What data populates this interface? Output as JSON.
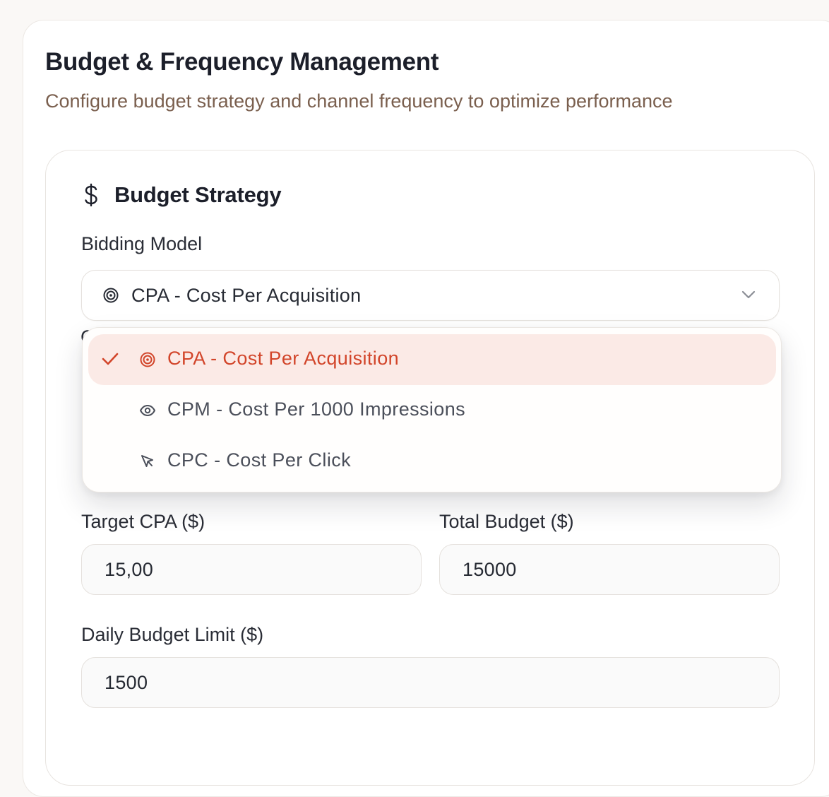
{
  "header": {
    "title": "Budget & Frequency Management",
    "subtitle": "Configure budget strategy and channel frequency to optimize performance"
  },
  "budget_strategy": {
    "icon": "dollar-sign-icon",
    "title": "Budget Strategy",
    "bidding_model": {
      "label": "Bidding Model",
      "selected_value": "CPA - Cost Per Acquisition",
      "selected_icon": "target-icon",
      "options": [
        {
          "label": "CPA - Cost Per Acquisition",
          "icon": "target-icon",
          "selected": true
        },
        {
          "label": "CPM - Cost Per 1000 Impressions",
          "icon": "eye-icon",
          "selected": false
        },
        {
          "label": "CPC - Cost Per Click",
          "icon": "cursor-click-icon",
          "selected": false
        }
      ]
    },
    "target_cpa": {
      "label": "Target CPA ($)",
      "value": "15,00"
    },
    "total_budget": {
      "label": "Total Budget ($)",
      "value": "15000"
    },
    "daily_budget_limit": {
      "label": "Daily Budget Limit ($)",
      "value": "1500"
    }
  },
  "colors": {
    "accent": "#d2452a",
    "selected_bg": "#fbeae6",
    "subtitle": "#7a5f4e"
  }
}
